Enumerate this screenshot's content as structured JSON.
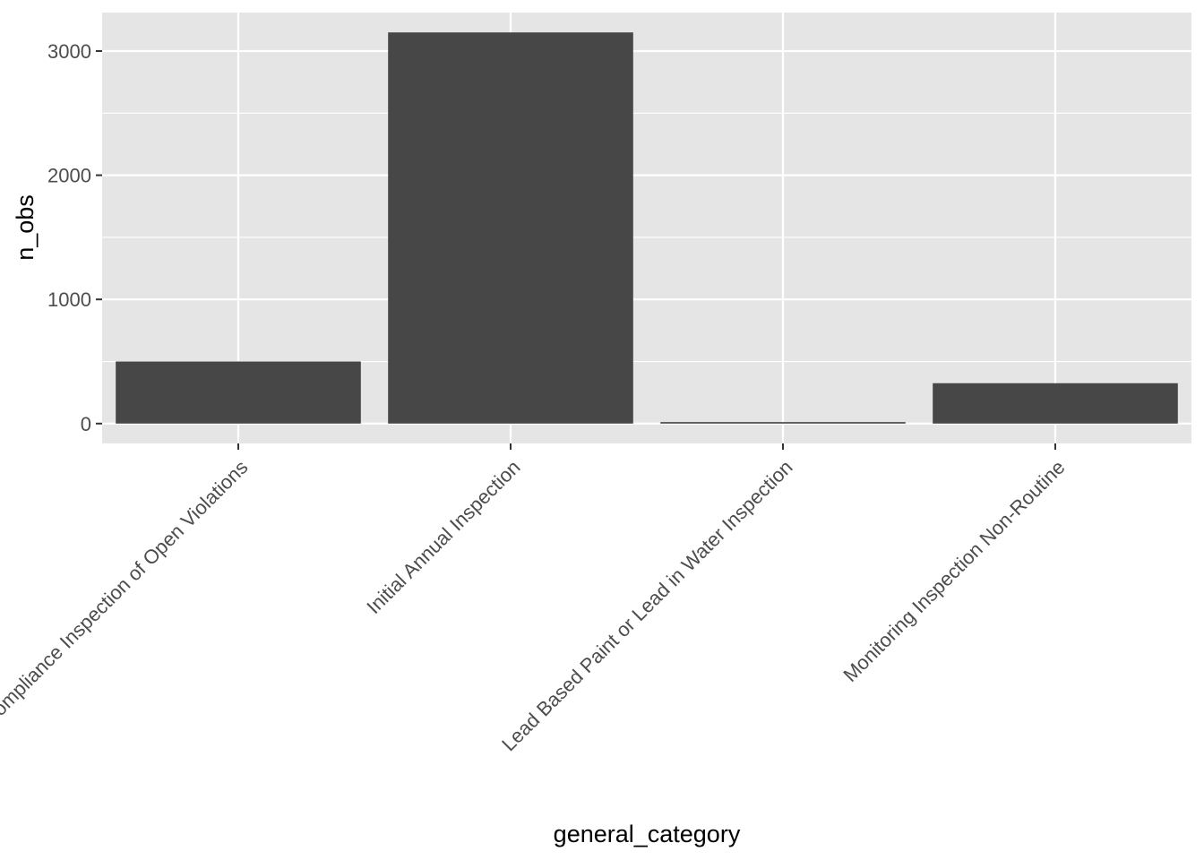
{
  "chart_data": {
    "type": "bar",
    "title": "",
    "xlabel": "general_category",
    "ylabel": "n_obs",
    "categories": [
      "Compliance Inspection of Open Violations",
      "Initial Annual Inspection",
      "Lead Based Paint or Lead in Water Inspection",
      "Monitoring Inspection Non-Routine"
    ],
    "values": [
      500,
      3150,
      12,
      325
    ],
    "ylim": [
      -160,
      3310
    ],
    "yticks": [
      0,
      1000,
      2000,
      3000
    ],
    "grid": true,
    "legend": "none"
  },
  "colors": {
    "panel_background": "#e5e5e5",
    "grid": "#ffffff",
    "bar_fill": "#474747",
    "tick_text": "#4d4d4d",
    "tick_mark": "#333333"
  }
}
